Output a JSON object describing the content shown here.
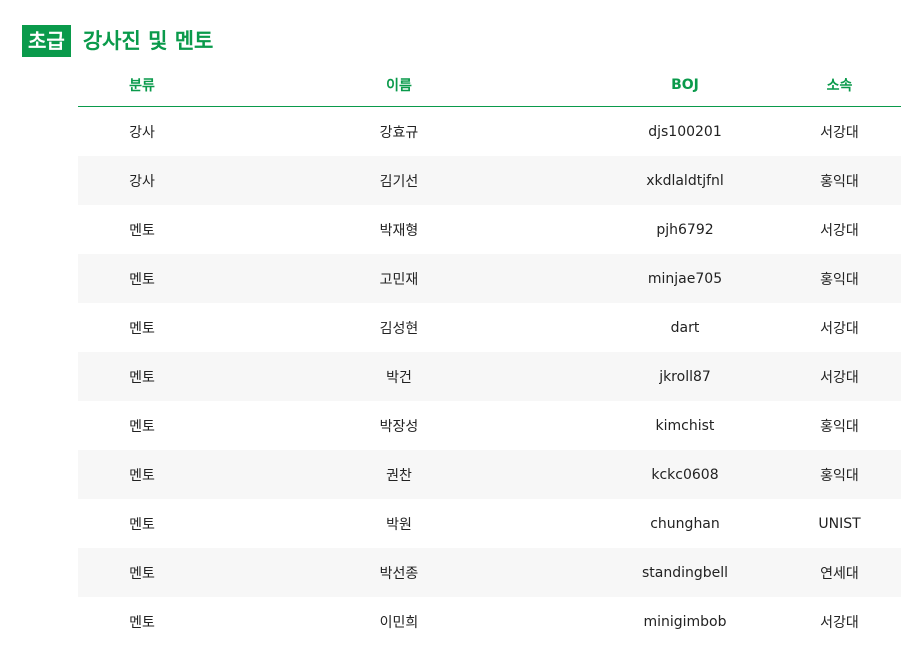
{
  "heading": {
    "level": "초급",
    "title": "강사진 및 멘토"
  },
  "colors": {
    "accent": "#0a9a4b",
    "row_alt": "#f7f7f7"
  },
  "table": {
    "columns": [
      "분류",
      "이름",
      "BOJ",
      "소속"
    ],
    "rows": [
      [
        "강사",
        "강효규",
        "djs100201",
        "서강대"
      ],
      [
        "강사",
        "김기선",
        "xkdlaldtjfnl",
        "홍익대"
      ],
      [
        "멘토",
        "박재형",
        "pjh6792",
        "서강대"
      ],
      [
        "멘토",
        "고민재",
        "minjae705",
        "홍익대"
      ],
      [
        "멘토",
        "김성현",
        "dart",
        "서강대"
      ],
      [
        "멘토",
        "박건",
        "jkroll87",
        "서강대"
      ],
      [
        "멘토",
        "박장성",
        "kimchist",
        "홍익대"
      ],
      [
        "멘토",
        "권찬",
        "kckc0608",
        "홍익대"
      ],
      [
        "멘토",
        "박원",
        "chunghan",
        "UNIST"
      ],
      [
        "멘토",
        "박선종",
        "standingbell",
        "연세대"
      ],
      [
        "멘토",
        "이민희",
        "minigimbob",
        "서강대"
      ]
    ]
  }
}
